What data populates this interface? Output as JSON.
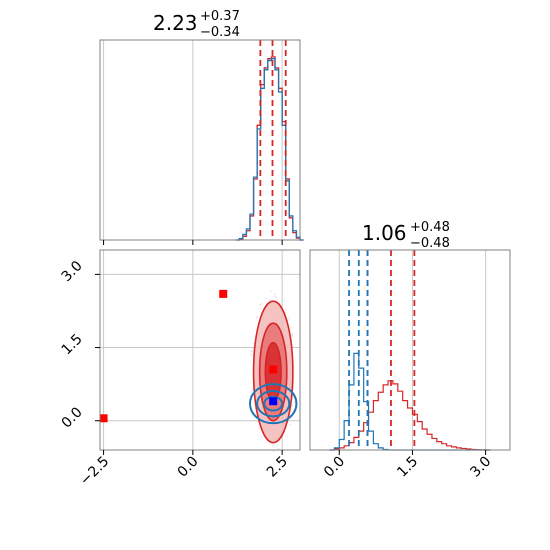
{
  "colors": {
    "red": "#d62728",
    "blue": "#1f77b4",
    "marker_red": "#ff0000",
    "marker_blue": "#0000ff",
    "grid": "#c8c8c8",
    "frame": "#808080"
  },
  "chart_data": [
    {
      "type": "histogram",
      "panel": "top-left marginal (parameter 1)",
      "title": {
        "median": "2.23",
        "plus": "+0.37",
        "minus": "−0.34"
      },
      "x_range": [
        -2.6,
        3.0
      ],
      "grid": true,
      "x": [
        1.2,
        1.3,
        1.4,
        1.5,
        1.6,
        1.7,
        1.8,
        1.9,
        2.0,
        2.1,
        2.2,
        2.3,
        2.4,
        2.5,
        2.6,
        2.7,
        2.8,
        2.9,
        3.0
      ],
      "series": [
        {
          "color": "#d62728",
          "values": [
            0,
            0.005,
            0.02,
            0.05,
            0.13,
            0.33,
            0.62,
            0.84,
            0.93,
            0.98,
            0.99,
            0.93,
            0.82,
            0.64,
            0.33,
            0.12,
            0.04,
            0.01,
            0
          ]
        },
        {
          "color": "#1f77b4",
          "values": [
            0,
            0.008,
            0.03,
            0.06,
            0.14,
            0.34,
            0.6,
            0.82,
            0.92,
            0.97,
            0.98,
            0.92,
            0.8,
            0.62,
            0.32,
            0.13,
            0.05,
            0.015,
            0
          ]
        }
      ],
      "vlines": [
        {
          "x": 1.89,
          "color": "#d62728",
          "style": "dashed"
        },
        {
          "x": 2.23,
          "color": "#d62728",
          "style": "dashed"
        },
        {
          "x": 2.6,
          "color": "#d62728",
          "style": "dashed"
        }
      ]
    },
    {
      "type": "scatter",
      "panel": "bottom-left 2D contour",
      "x_range": [
        -2.6,
        3.0
      ],
      "y_range": [
        -0.6,
        3.5
      ],
      "grid": true,
      "x_ticks": [
        "−2.5",
        "0.0",
        "2.5"
      ],
      "x_tick_values": [
        -2.5,
        0.0,
        2.5
      ],
      "y_ticks": [
        "0.0",
        "1.5",
        "3.0"
      ],
      "y_tick_values": [
        0.0,
        1.5,
        3.0
      ],
      "red_contours": {
        "center": [
          2.25,
          1.0
        ],
        "radii": [
          [
            0.55,
            1.45
          ],
          [
            0.38,
            1.0
          ],
          [
            0.22,
            0.6
          ]
        ]
      },
      "blue_contours": {
        "center": [
          2.25,
          0.35
        ],
        "radii": [
          [
            0.65,
            0.4
          ],
          [
            0.45,
            0.26
          ],
          [
            0.25,
            0.14
          ]
        ]
      },
      "red_markers": [
        {
          "x": -2.5,
          "y": 0.05
        },
        {
          "x": 0.85,
          "y": 2.6
        },
        {
          "x": 2.25,
          "y": 1.05
        }
      ],
      "blue_markers": [
        {
          "x": 2.25,
          "y": 0.4
        }
      ]
    },
    {
      "type": "histogram",
      "panel": "bottom-right marginal (parameter 2)",
      "title": {
        "median": "1.06",
        "plus": "+0.48",
        "minus": "−0.48"
      },
      "x_range": [
        -0.6,
        3.5
      ],
      "grid": true,
      "x_ticks": [
        "0.0",
        "1.5",
        "3.0"
      ],
      "x_tick_values": [
        0.0,
        1.5,
        3.0
      ],
      "x": [
        -0.2,
        -0.1,
        0.0,
        0.1,
        0.2,
        0.3,
        0.4,
        0.5,
        0.6,
        0.7,
        0.8,
        0.9,
        1.0,
        1.1,
        1.2,
        1.3,
        1.4,
        1.5,
        1.6,
        1.7,
        1.8,
        1.9,
        2.0,
        2.1,
        2.2,
        2.3,
        2.4,
        2.5,
        2.6,
        2.7,
        2.8,
        2.9,
        3.0
      ],
      "series": [
        {
          "color": "#d62728",
          "values": [
            0,
            0.01,
            0.02,
            0.04,
            0.07,
            0.12,
            0.18,
            0.26,
            0.36,
            0.47,
            0.55,
            0.62,
            0.66,
            0.63,
            0.56,
            0.47,
            0.4,
            0.34,
            0.27,
            0.2,
            0.15,
            0.11,
            0.08,
            0.06,
            0.04,
            0.03,
            0.02,
            0.015,
            0.01,
            0.005,
            0.003,
            0.001,
            0
          ]
        },
        {
          "color": "#1f77b4",
          "values": [
            0,
            0.02,
            0.1,
            0.28,
            0.62,
            0.92,
            0.78,
            0.46,
            0.18,
            0.06,
            0.02,
            0.005,
            0,
            0,
            0,
            0,
            0,
            0,
            0,
            0,
            0,
            0,
            0,
            0,
            0,
            0,
            0,
            0,
            0,
            0,
            0,
            0,
            0
          ]
        }
      ],
      "vlines": [
        {
          "x": 0.58,
          "color": "#d62728",
          "style": "dashed"
        },
        {
          "x": 1.06,
          "color": "#d62728",
          "style": "dashed"
        },
        {
          "x": 1.54,
          "color": "#d62728",
          "style": "dashed"
        },
        {
          "x": 0.2,
          "color": "#1f77b4",
          "style": "dashed"
        },
        {
          "x": 0.4,
          "color": "#1f77b4",
          "style": "dashed"
        },
        {
          "x": 0.58,
          "color": "#1f77b4",
          "style": "dashed"
        }
      ]
    }
  ]
}
